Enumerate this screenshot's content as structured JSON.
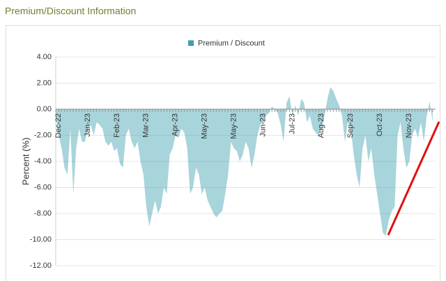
{
  "chart_data": {
    "type": "area",
    "title": "Premium/Discount Information",
    "ylabel": "Percent (%)",
    "categories": [
      "Dec-22",
      null,
      null,
      null,
      null,
      null,
      null,
      null,
      null,
      null,
      "Jan-23",
      null,
      null,
      null,
      null,
      null,
      null,
      null,
      null,
      null,
      "Feb-23",
      null,
      null,
      null,
      null,
      null,
      null,
      null,
      null,
      null,
      "Mar-23",
      null,
      null,
      null,
      null,
      null,
      null,
      null,
      null,
      null,
      "Apr-23",
      null,
      null,
      null,
      null,
      null,
      null,
      null,
      null,
      null,
      "May-23",
      null,
      null,
      null,
      null,
      null,
      null,
      null,
      null,
      null,
      "May-23",
      null,
      null,
      null,
      null,
      null,
      null,
      null,
      null,
      null,
      "Jun-23",
      null,
      null,
      null,
      null,
      null,
      null,
      null,
      null,
      null,
      "Jul-23",
      null,
      null,
      null,
      null,
      null,
      null,
      null,
      null,
      null,
      "Aug-23",
      null,
      null,
      null,
      null,
      null,
      null,
      null,
      null,
      null,
      "Sep-23",
      null,
      null,
      null,
      null,
      null,
      null,
      null,
      null,
      null,
      "Oct-23",
      null,
      null,
      null,
      null,
      null,
      null,
      null,
      null,
      null,
      "Nov-23",
      null,
      null,
      null,
      null,
      null,
      null,
      null,
      null,
      null
    ],
    "series": [
      {
        "name": "Premium / Discount",
        "color": "#3f9fb0",
        "values": [
          -0.5,
          -2,
          -3,
          -4.5,
          -5,
          -1.5,
          -6.5,
          -3,
          -1.5,
          -2.5,
          -2.5,
          -1.5,
          -1.2,
          -2,
          -1,
          -1.2,
          -1.5,
          -2.5,
          -2.8,
          -2.5,
          -3.2,
          -3,
          -4.2,
          -4.5,
          -2,
          -1.5,
          -2.5,
          -3,
          -2.5,
          -4,
          -5,
          -7.5,
          -9,
          -8,
          -7,
          -8,
          -7.5,
          -6,
          -6.5,
          -3.5,
          -3,
          -2,
          -2.2,
          -1.5,
          -1.8,
          -3,
          -6.5,
          -6,
          -4.5,
          -5,
          -6.5,
          -6,
          -7,
          -7.5,
          -8,
          -8.3,
          -8,
          -7.8,
          -6.5,
          -5,
          -2.5,
          -3,
          -3.2,
          -4,
          -3.5,
          -2.5,
          -3,
          -4.5,
          -3.5,
          -2,
          -1.2,
          -1,
          -0.5,
          -0.3,
          0.2,
          0,
          -0.3,
          -1.2,
          -2.5,
          0.5,
          1,
          -0.5,
          0.3,
          -0.5,
          0.8,
          0.5,
          -1,
          -0.5,
          -1.5,
          -1.8,
          -2,
          -1.5,
          -0.5,
          0.8,
          1.7,
          1.4,
          0.8,
          0.3,
          -0.5,
          -2.5,
          -1,
          -1.5,
          -3.5,
          -5,
          -6,
          -3,
          -2,
          -4,
          -3,
          -5,
          -6.5,
          -8,
          -9.5,
          -9.7,
          -8.5,
          -7.8,
          -7.5,
          -2,
          -1,
          -3,
          -4.5,
          -4,
          -2,
          -1.5,
          -2.2,
          -1,
          -2.5,
          -0.5,
          0.6,
          -1
        ]
      }
    ],
    "ylim": [
      -12,
      4
    ],
    "yticks": [
      {
        "value": 4,
        "label": "4.00"
      },
      {
        "value": 2,
        "label": "2.00"
      },
      {
        "value": 0,
        "label": "0.00"
      },
      {
        "value": -2,
        "label": "-2.00"
      },
      {
        "value": -4,
        "label": "-4.00"
      },
      {
        "value": -6,
        "label": "-6.00"
      },
      {
        "value": -8,
        "label": "-8.00"
      },
      {
        "value": -10,
        "label": "-10.00"
      },
      {
        "value": -12,
        "label": "-12.00"
      }
    ],
    "grid": true
  }
}
